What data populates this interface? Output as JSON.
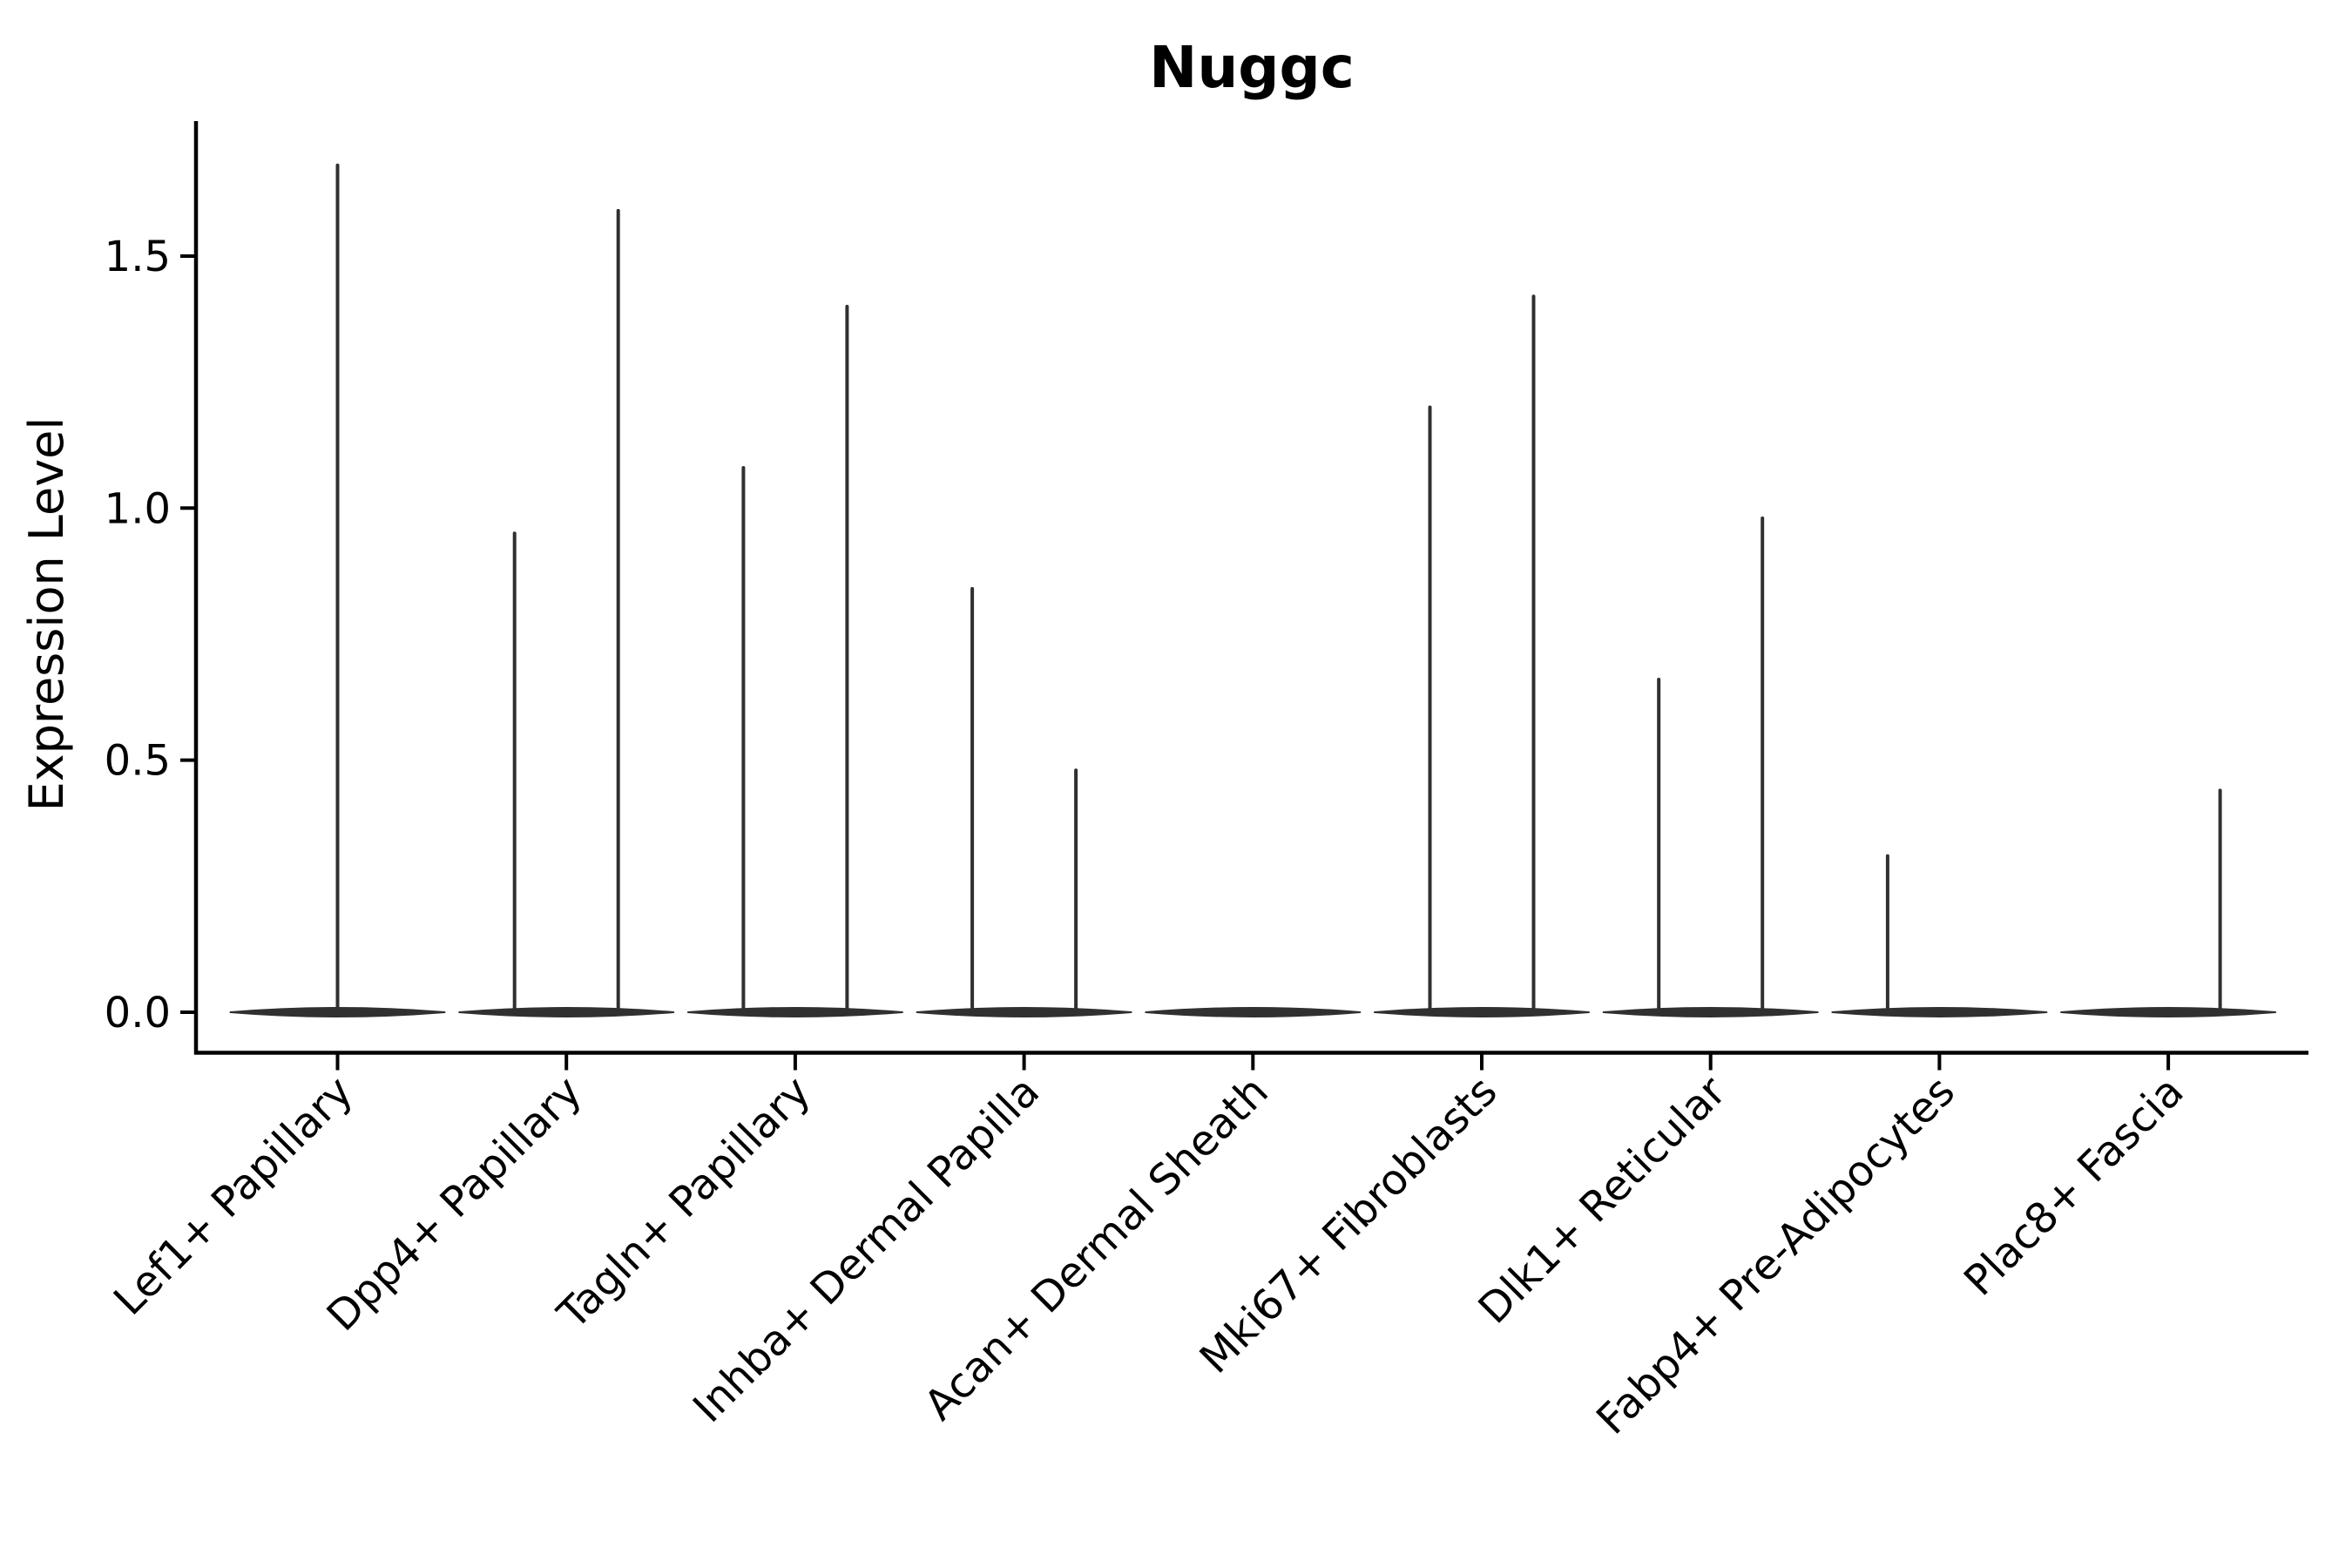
{
  "page": {
    "background": "#ffffff"
  },
  "chart_data": {
    "type": "violin",
    "title": "Nuggc",
    "ylabel": "Expression Level",
    "xlabel": "",
    "legend": null,
    "grid": false,
    "ylim": [
      -0.08,
      1.77
    ],
    "ytick_labels": [
      "0.0",
      "0.5",
      "1.0",
      "1.5"
    ],
    "ytick_values": [
      0.0,
      0.5,
      1.0,
      1.5
    ],
    "violin_color": "#303030",
    "axis_color": "#000000",
    "text_color": "#000000",
    "categories": [
      "Lef1+ Papillary",
      "Dpp4+ Papillary",
      "Tagln+ Papillary",
      "Inhba+ Dermal Papilla",
      "Acan+ Dermal Sheath",
      "Mki67+ Fibroblasts",
      "Dlk1+ Reticular",
      "Fabp4+ Pre-Adipocytes",
      "Plac8+ Fascia"
    ],
    "violins": [
      {
        "category": "Lef1+ Papillary",
        "groups": [
          {
            "position": "center",
            "max_expression": 1.68
          }
        ]
      },
      {
        "category": "Dpp4+ Papillary",
        "groups": [
          {
            "position": "left",
            "max_expression": 0.95
          },
          {
            "position": "right",
            "max_expression": 1.59
          }
        ]
      },
      {
        "category": "Tagln+ Papillary",
        "groups": [
          {
            "position": "left",
            "max_expression": 1.08
          },
          {
            "position": "right",
            "max_expression": 1.4
          }
        ]
      },
      {
        "category": "Inhba+ Dermal Papilla",
        "groups": [
          {
            "position": "left",
            "max_expression": 0.84
          },
          {
            "position": "right",
            "max_expression": 0.48
          }
        ]
      },
      {
        "category": "Acan+ Dermal Sheath",
        "groups": [
          {
            "position": "left",
            "max_expression": 0.0
          },
          {
            "position": "right",
            "max_expression": 0.0
          }
        ]
      },
      {
        "category": "Mki67+ Fibroblasts",
        "groups": [
          {
            "position": "left",
            "max_expression": 1.2
          },
          {
            "position": "right",
            "max_expression": 1.42
          }
        ]
      },
      {
        "category": "Dlk1+ Reticular",
        "groups": [
          {
            "position": "left",
            "max_expression": 0.66
          },
          {
            "position": "right",
            "max_expression": 0.98
          }
        ]
      },
      {
        "category": "Fabp4+ Pre-Adipocytes",
        "groups": [
          {
            "position": "left",
            "max_expression": 0.31
          },
          {
            "position": "right",
            "max_expression": 0.0
          }
        ]
      },
      {
        "category": "Plac8+ Fascia",
        "groups": [
          {
            "position": "left",
            "max_expression": 0.0
          },
          {
            "position": "right",
            "max_expression": 0.44
          }
        ]
      }
    ]
  }
}
